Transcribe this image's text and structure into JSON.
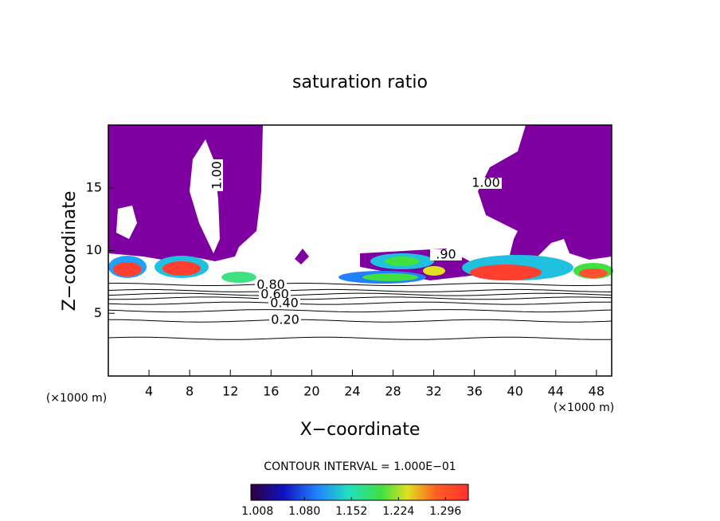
{
  "chart_data": {
    "type": "contour",
    "title": "saturation ratio",
    "x_label": "X−coordinate",
    "y_label": "Z−coordinate",
    "x_unit_left": "(×1000 m)",
    "x_unit_right": "(×1000 m)",
    "xlim": [
      0,
      49.5
    ],
    "ylim": [
      0,
      20
    ],
    "xticks": [
      4,
      8,
      12,
      16,
      20,
      24,
      28,
      32,
      36,
      40,
      44,
      48
    ],
    "yticks": [
      5,
      10,
      15
    ],
    "contour_heights": [
      3.0,
      4.4,
      5.2,
      5.8,
      6.2,
      6.5,
      6.8,
      7.3
    ],
    "contour_labels": [
      "1.00",
      "1.00",
      ".90",
      "0.80",
      "0.60",
      "0.40",
      "0.20"
    ],
    "contour_interval": "CONTOUR INTERVAL = 1.000E−01",
    "fill_color": "#7f00a0",
    "colorbar_lim": [
      0.998,
      1.331
    ],
    "colorbar_ticks": [
      1.008,
      {
        "value": 1.08,
        "label": "1.080"
      },
      1.152,
      1.224,
      1.296
    ]
  }
}
